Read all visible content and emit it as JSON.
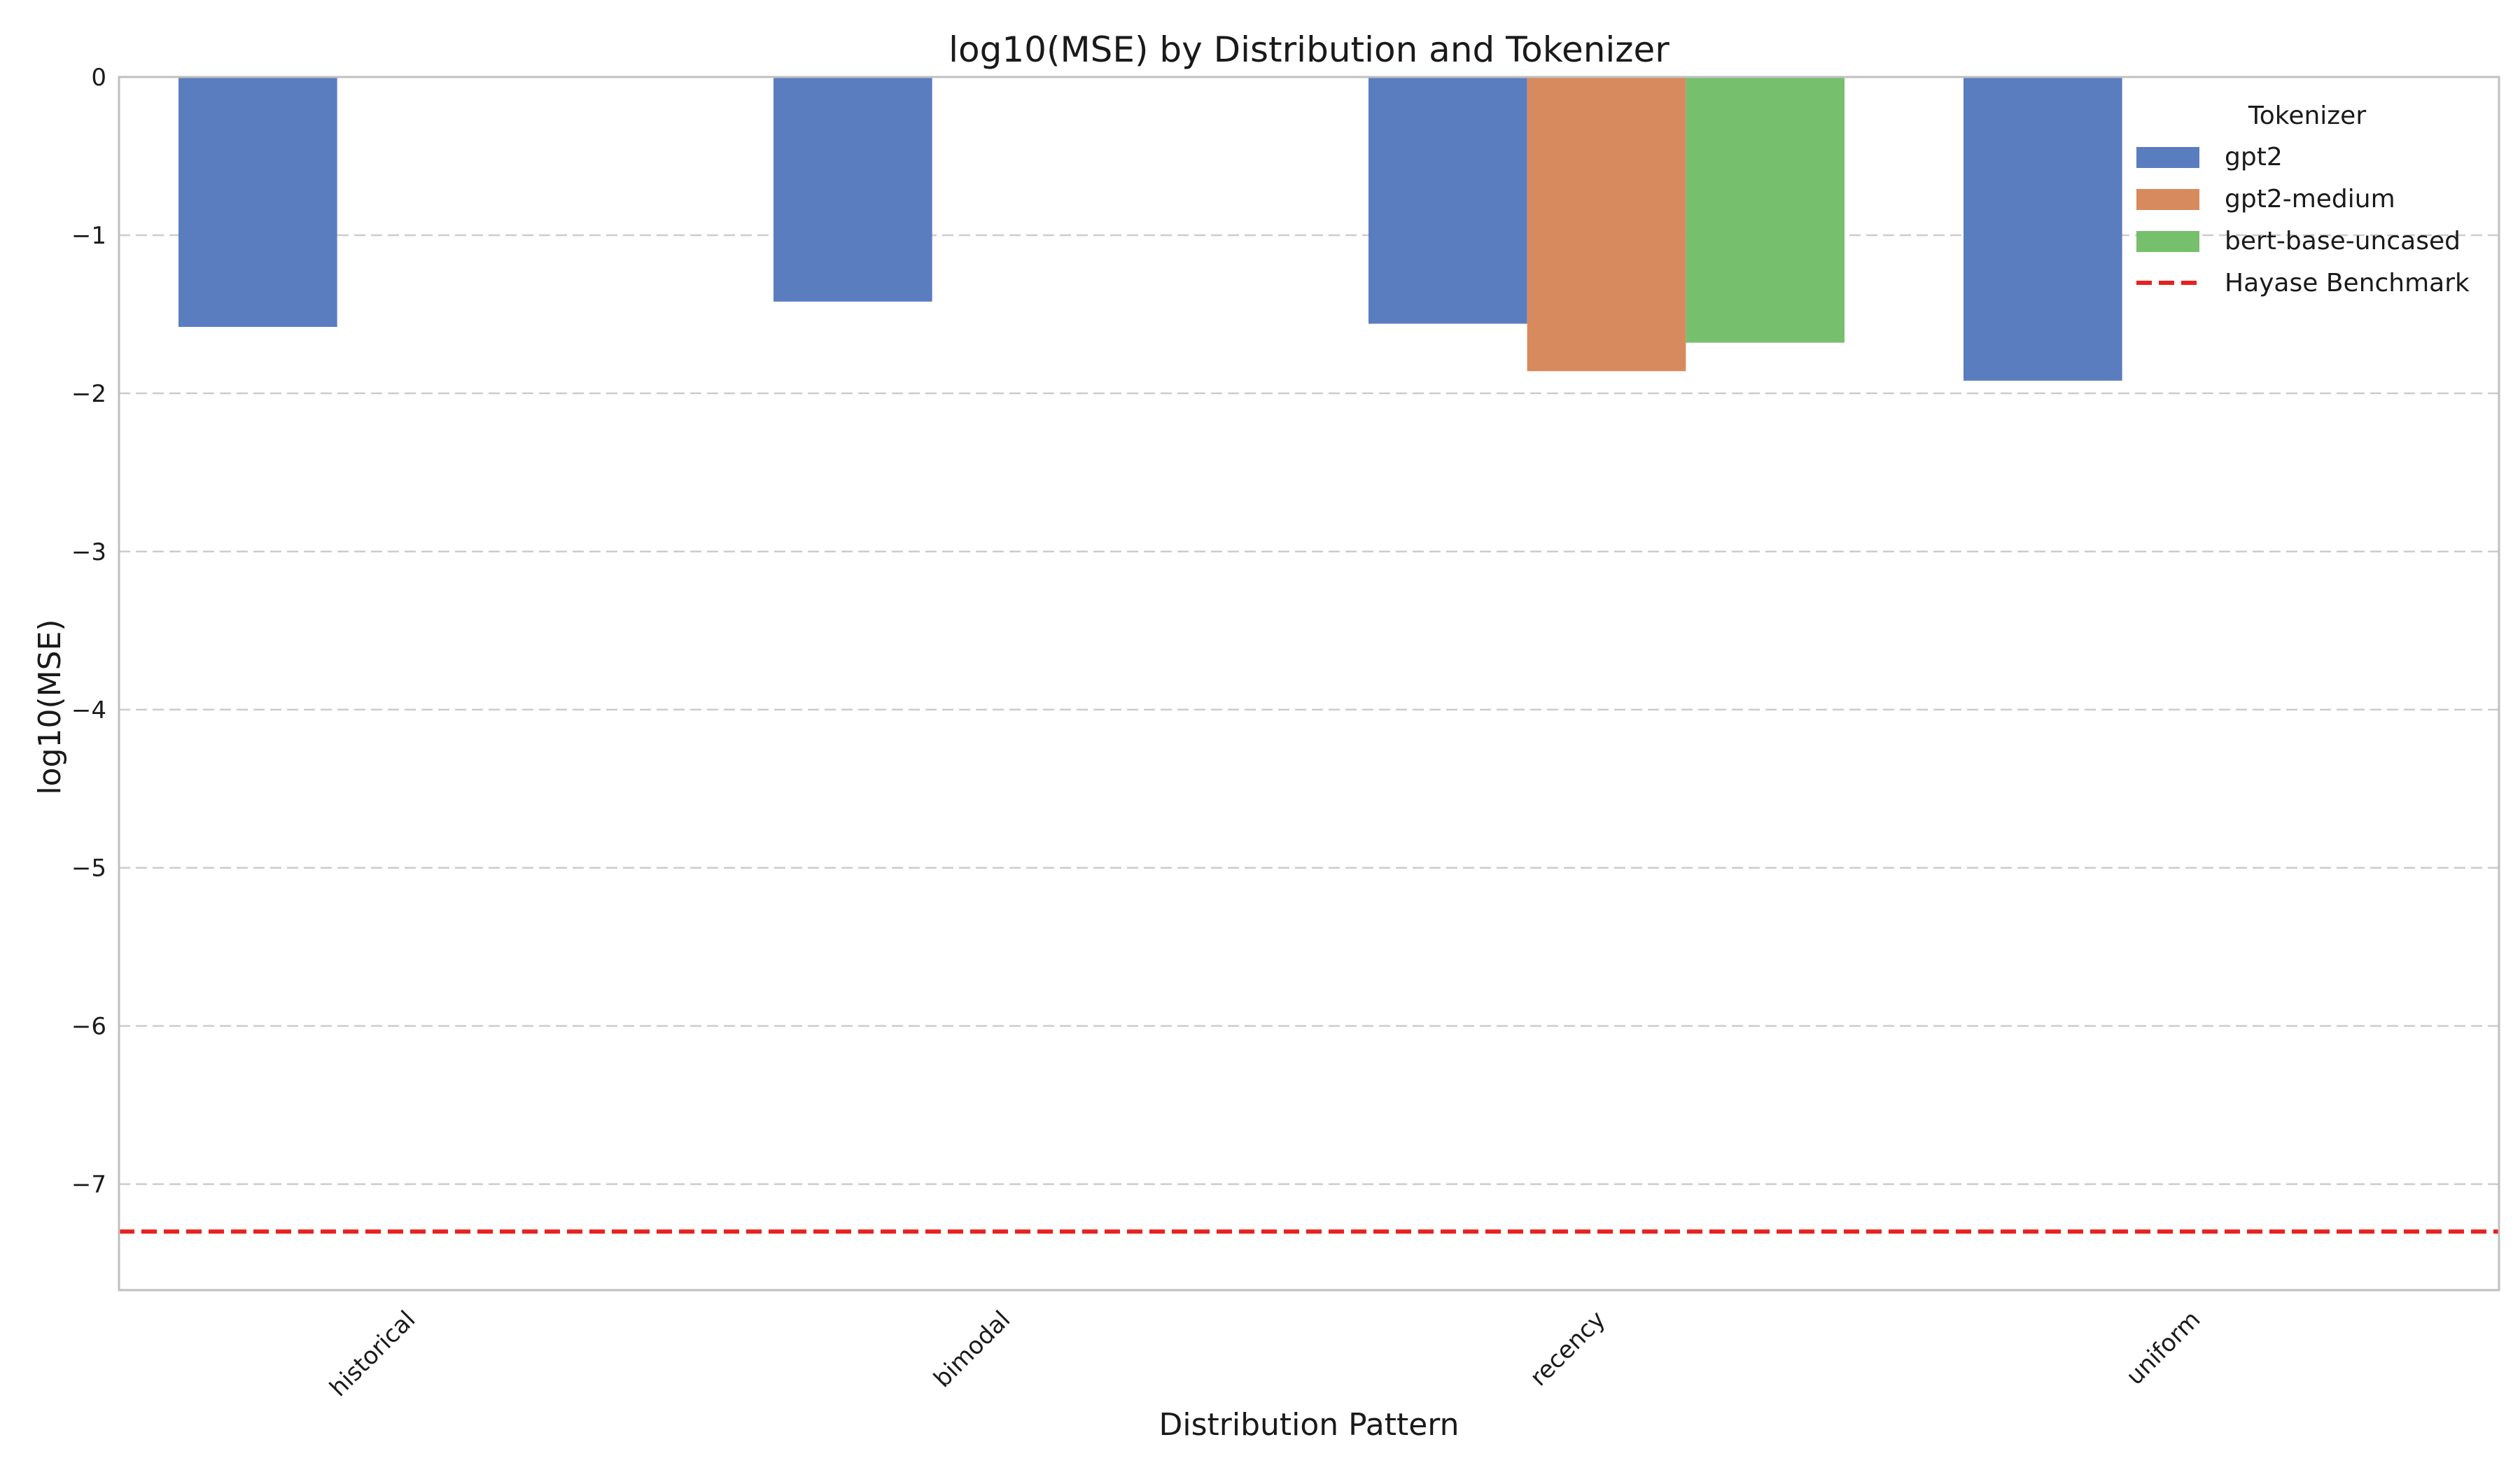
{
  "chart_data": {
    "type": "bar",
    "title": "log10(MSE) by Distribution and Tokenizer",
    "xlabel": "Distribution Pattern",
    "ylabel": "log10(MSE)",
    "categories": [
      "historical",
      "bimodal",
      "recency",
      "uniform"
    ],
    "series": [
      {
        "name": "gpt2",
        "color": "#5a7dc0",
        "values": [
          -1.58,
          -1.42,
          -1.56,
          -1.92
        ]
      },
      {
        "name": "gpt2-medium",
        "color": "#d78a5d",
        "values": [
          null,
          null,
          -1.86,
          null
        ]
      },
      {
        "name": "bert-base-uncased",
        "color": "#76bf6d",
        "values": [
          null,
          null,
          -1.68,
          null
        ]
      }
    ],
    "reference_line": {
      "name": "Hayase Benchmark",
      "value": -7.3,
      "color": "#e8201f",
      "style": "dashed"
    },
    "ylim": [
      -7.67,
      0
    ],
    "yticks": [
      0,
      -1,
      -2,
      -3,
      -4,
      -5,
      -6,
      -7
    ],
    "ytick_labels": [
      "0",
      "−1",
      "−2",
      "−3",
      "−4",
      "−5",
      "−6",
      "−7"
    ],
    "grid": "horizontal-dashed",
    "legend": {
      "title": "Tokenizer",
      "placement": "top-right"
    }
  }
}
